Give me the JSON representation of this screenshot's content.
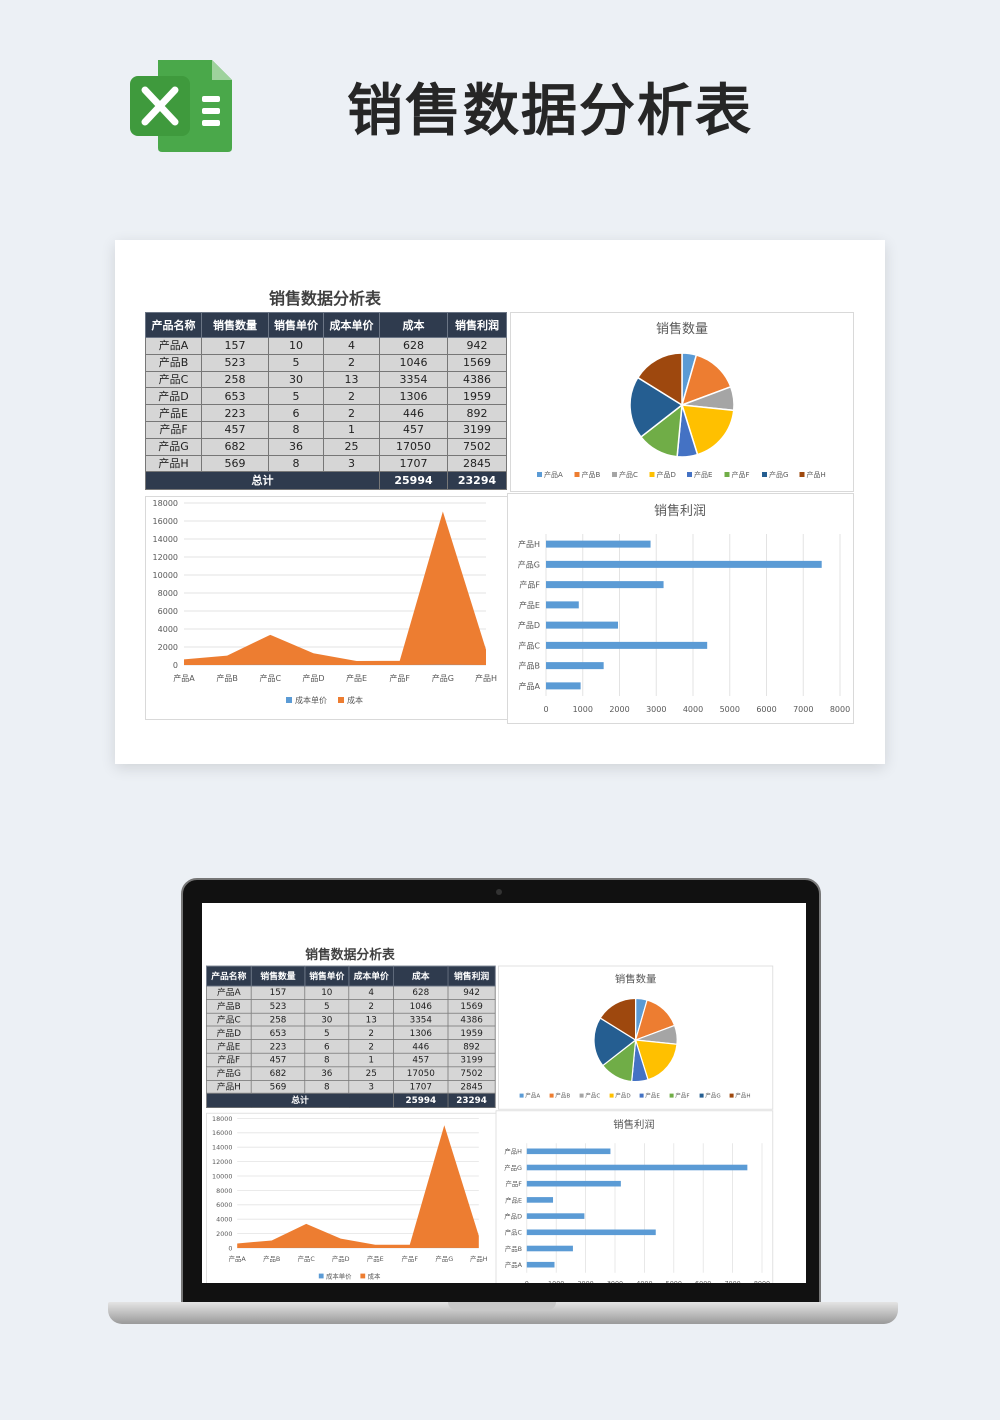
{
  "header": {
    "title": "销售数据分析表",
    "logo_icon": "excel-icon"
  },
  "sheet": {
    "title": "销售数据分析表",
    "columns": [
      "产品名称",
      "销售数量",
      "销售单价",
      "成本单价",
      "成本",
      "销售利润"
    ],
    "rows": [
      [
        "产品A",
        "157",
        "10",
        "4",
        "628",
        "942"
      ],
      [
        "产品B",
        "523",
        "5",
        "2",
        "1046",
        "1569"
      ],
      [
        "产品C",
        "258",
        "30",
        "13",
        "3354",
        "4386"
      ],
      [
        "产品D",
        "653",
        "5",
        "2",
        "1306",
        "1959"
      ],
      [
        "产品E",
        "223",
        "6",
        "2",
        "446",
        "892"
      ],
      [
        "产品F",
        "457",
        "8",
        "1",
        "457",
        "3199"
      ],
      [
        "产品G",
        "682",
        "36",
        "25",
        "17050",
        "7502"
      ],
      [
        "产品H",
        "569",
        "8",
        "3",
        "1707",
        "2845"
      ]
    ],
    "total": {
      "label": "总计",
      "cost": "25994",
      "profit": "23294"
    }
  },
  "chart_data": [
    {
      "type": "pie",
      "title": "销售数量",
      "categories": [
        "产品A",
        "产品B",
        "产品C",
        "产品D",
        "产品E",
        "产品F",
        "产品G",
        "产品H"
      ],
      "values": [
        157,
        523,
        258,
        653,
        223,
        457,
        682,
        569
      ],
      "colors": [
        "#5b9bd5",
        "#ed7d31",
        "#a5a5a5",
        "#ffc000",
        "#4472c4",
        "#70ad47",
        "#255e91",
        "#9e480e"
      ],
      "legend": "bottom"
    },
    {
      "type": "area",
      "title": "",
      "categories": [
        "产品A",
        "产品B",
        "产品C",
        "产品D",
        "产品E",
        "产品F",
        "产品G",
        "产品H"
      ],
      "series": [
        {
          "name": "成本单价",
          "values": [
            4,
            2,
            13,
            2,
            2,
            1,
            25,
            3
          ],
          "color": "#5b9bd5"
        },
        {
          "name": "成本",
          "values": [
            628,
            1046,
            3354,
            1306,
            446,
            457,
            17050,
            1707
          ],
          "color": "#ed7d31"
        }
      ],
      "yticks": [
        "0",
        "2000",
        "4000",
        "6000",
        "8000",
        "10000",
        "12000",
        "14000",
        "16000",
        "18000"
      ],
      "ylim": [
        0,
        18000
      ],
      "grid": true,
      "legend": "bottom"
    },
    {
      "type": "bar",
      "orientation": "horizontal",
      "title": "销售利润",
      "categories": [
        "产品A",
        "产品B",
        "产品C",
        "产品D",
        "产品E",
        "产品F",
        "产品G",
        "产品H"
      ],
      "values": [
        942,
        1569,
        4386,
        1959,
        892,
        3199,
        7502,
        2845
      ],
      "color": "#5b9bd5",
      "xticks": [
        "0",
        "1000",
        "2000",
        "3000",
        "4000",
        "5000",
        "6000",
        "7000",
        "8000"
      ],
      "xlim": [
        0,
        8000
      ],
      "grid": true
    }
  ]
}
